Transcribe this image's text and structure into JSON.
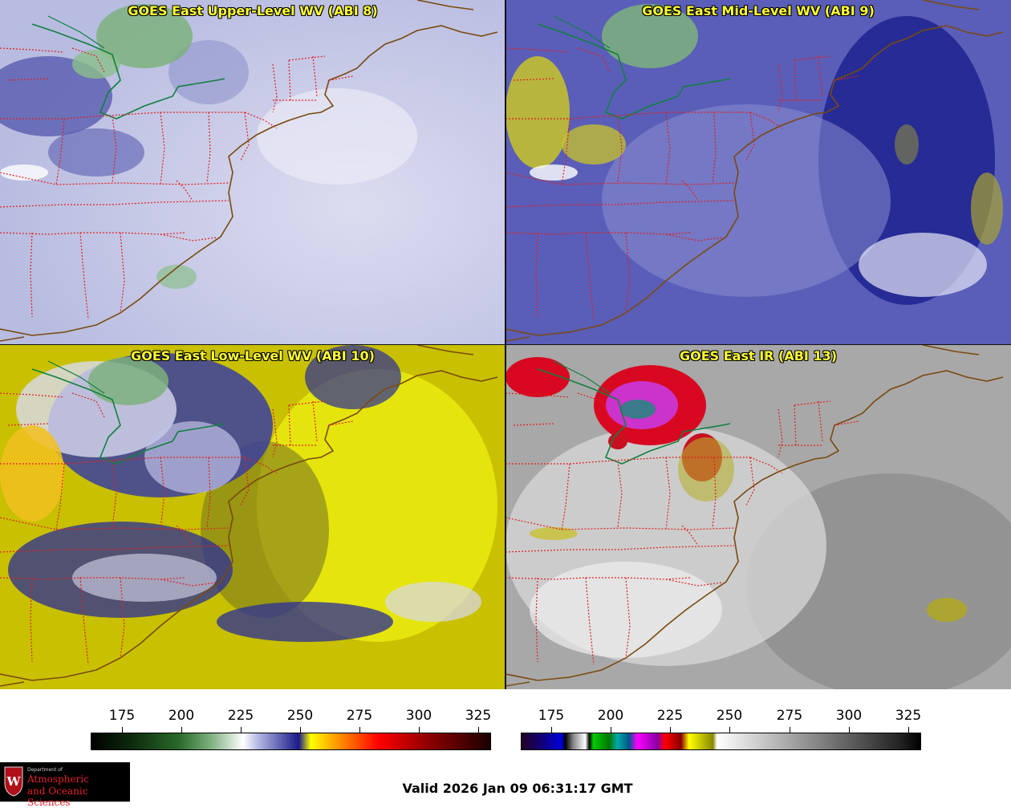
{
  "panels": [
    {
      "title": "GOES East Upper-Level WV (ABI 8)"
    },
    {
      "title": "GOES East Mid-Level WV (ABI 9)"
    },
    {
      "title": "GOES East Low-Level WV (ABI 10)"
    },
    {
      "title": "GOES East IR (ABI 13)"
    }
  ],
  "colorbar_wv": {
    "ticks": [
      "175",
      "200",
      "225",
      "250",
      "275",
      "300",
      "325"
    ]
  },
  "colorbar_ir": {
    "ticks": [
      "175",
      "200",
      "225",
      "250",
      "275",
      "300",
      "325"
    ]
  },
  "logo": {
    "line1": "Department of",
    "line2": "Atmospheric",
    "line3": "and Oceanic Sciences",
    "shield_letter": "W"
  },
  "valid_time": "Valid 2026 Jan 09 06:31:17 GMT",
  "colors": {
    "title_text": "#ffff33",
    "state_borders": "#e02020",
    "coastline": "#7a4a10",
    "lake_line": "#108040"
  }
}
